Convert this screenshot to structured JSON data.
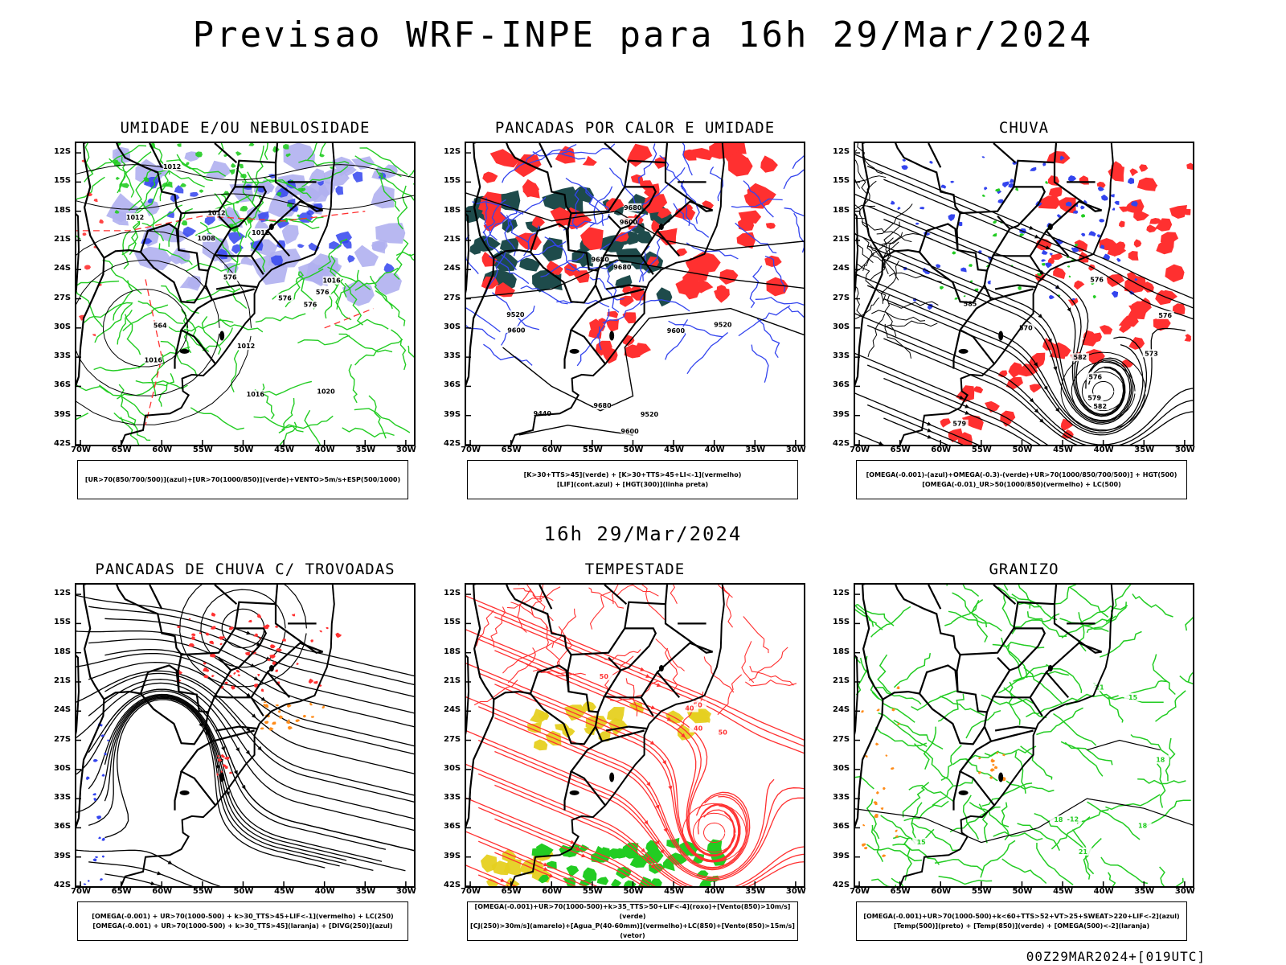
{
  "title": "Previsao WRF-INPE  para 16h 29/Mar/2024",
  "subtitle": "16h 29/Mar/2024",
  "footer": "00Z29MAR2024+[019UTC]",
  "lat_ticks": [
    "12S",
    "15S",
    "18S",
    "21S",
    "24S",
    "27S",
    "30S",
    "33S",
    "36S",
    "39S",
    "42S"
  ],
  "lon_ticks": [
    "70W",
    "65W",
    "60W",
    "55W",
    "50W",
    "45W",
    "40W",
    "35W",
    "30W"
  ],
  "colors": {
    "red": "#ff3030",
    "green": "#22cc22",
    "blue": "#3344ee",
    "lightblue": "#b0b0f0",
    "darkteal": "#1e4b4b",
    "yellow": "#e6d020",
    "orange": "#ff8c1a"
  },
  "panels": [
    {
      "title": "UMIDADE E/OU NEBULOSIDADE",
      "legend": [
        "[UR>70(850/700/500)](azul)+[UR>70(1000/850)](verde)+VENTO>5m/s+ESP(500/1000)"
      ],
      "labels": [
        "1012",
        "1012",
        "1016",
        "1016",
        "1016",
        "1012",
        "1012",
        "1012",
        "1008",
        "1020",
        "576",
        "576",
        "576",
        "564",
        "576"
      ]
    },
    {
      "title": "PANCADAS POR CALOR E UMIDADE",
      "legend": [
        "[K>30+TTS>45](verde) + [K>30+TTS>45+LI<-1](vermelho)",
        "[LIF](cont.azul) + [HGT(300)](linha preta)"
      ],
      "labels": [
        "9680",
        "9680",
        "9680",
        "9680",
        "9600",
        "9600",
        "9600",
        "9600",
        "9520",
        "9520",
        "9440",
        "9520"
      ]
    },
    {
      "title": "CHUVA",
      "legend": [
        "[OMEGA(-0.001)-(azul)+OMEGA(-0.3)-(verde)+UR>70(1000/850/700/500)] + HGT(500)",
        "[OMEGA(-0.01)_UR>50(1000/850)(vermelho) + LC(500)"
      ],
      "labels": [
        "582",
        "576",
        "579",
        "579",
        "582",
        "585",
        "570",
        "573",
        "576",
        "576"
      ]
    },
    {
      "title": "PANCADAS DE CHUVA C/ TROVOADAS",
      "legend": [
        "[OMEGA(-0.001) + UR>70(1000-500) + k>30_TTS>45+LIF<-1](vermelho) + LC(250)",
        "[OMEGA(-0.001) + UR>70(1000-500) + k>30_TTS>45](laranja) + [DIVG(250)](azul)"
      ],
      "labels": []
    },
    {
      "title": "TEMPESTADE",
      "legend": [
        "[OMEGA(-0.001)+UR>70(1000-500)+k>35_TTS>50+LIF<-4](roxo)+[Vento(850)>10m/s](verde)",
        "[CJ(250)>30m/s](amarelo)+[Agua_P(40-60mm)](vermelho)+LC(850)+[Vento(850)>15m/s](vetor)"
      ],
      "labels": [
        "50",
        "40",
        "50",
        "50",
        "40"
      ]
    },
    {
      "title": "GRANIZO",
      "legend": [
        "[OMEGA(-0.001)+UR>70(1000-500)+k<60+TTS>52+VT>25+SWEAT>220+LIF<-2](azul)",
        "[Temp(500)](preto) + [Temp(850)](verde) + [OMEGA(500)<-2](laranja)"
      ],
      "labels": [
        "-12",
        "18",
        "18",
        "18",
        "18",
        "21",
        "21",
        "15",
        "15"
      ]
    }
  ]
}
